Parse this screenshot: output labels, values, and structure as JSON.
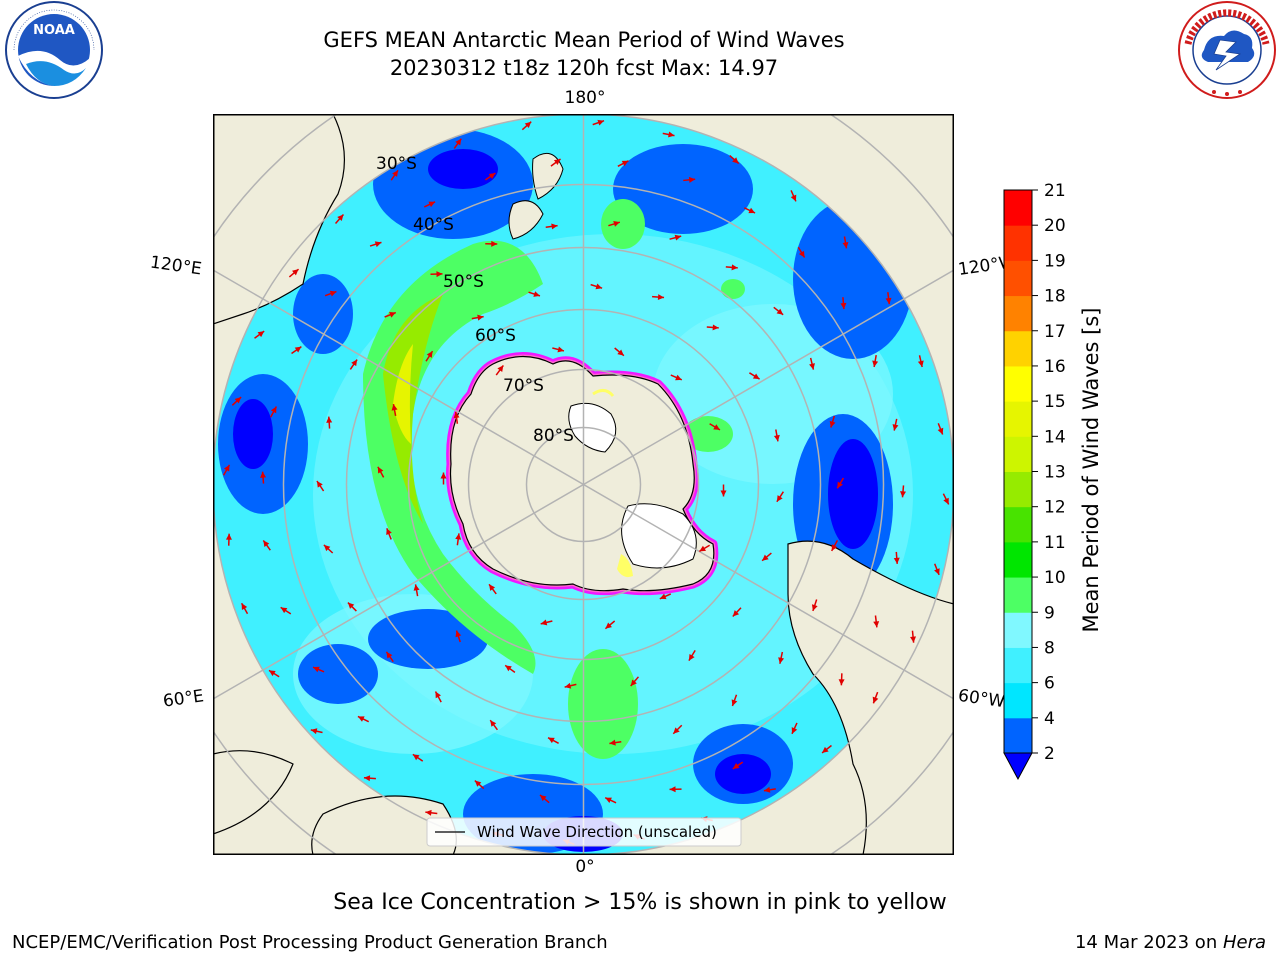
{
  "header": {
    "title_line1": "GEFS MEAN Antarctic Mean Period of Wind Waves",
    "title_line2": "20230312 t18z 120h fcst   Max: 14.97"
  },
  "logos": {
    "left": {
      "text": "NOAA",
      "ring_text": "NATIONAL OCEANIC AND ATMOSPHERIC ADMINISTRATION · U.S. DEPARTMENT OF COMMERCE"
    },
    "right": {
      "ring_text": "NATIONAL WEATHER SERVICE"
    }
  },
  "map": {
    "projection": "south-polar-stereographic",
    "longitude_labels": {
      "top": "180°",
      "bottom": "0°",
      "upper_left": "120°E",
      "upper_right": "120°W",
      "lower_left": "60°E",
      "lower_right": "60°W"
    },
    "latitude_labels": [
      "30°S",
      "40°S",
      "50°S",
      "60°S",
      "70°S",
      "80°S"
    ],
    "legend_label": "Wind Wave Direction (unscaled)",
    "land_color": "#efeddb",
    "grid_color": "#b3b3b3",
    "arrow_color": "#e00000",
    "sea_ice_colors": [
      "#ff66cc",
      "#ff00ff",
      "#ffff66"
    ]
  },
  "colorbar": {
    "label": "Mean Period of Wind Waves [s]",
    "ticks": [
      "2",
      "4",
      "6",
      "8",
      "9",
      "10",
      "11",
      "12",
      "13",
      "14",
      "15",
      "16",
      "17",
      "18",
      "19",
      "20",
      "21"
    ],
    "colors": [
      "#0064ff",
      "#00e6ff",
      "#40f0ff",
      "#80f8ff",
      "#a6fdf0",
      "#4dff64",
      "#00e600",
      "#48e300",
      "#96eb00",
      "#cdf500",
      "#e6f500",
      "#ffff00",
      "#ffd200",
      "#ffb400",
      "#ff8200",
      "#ff5000",
      "#ff3200",
      "#ff0000"
    ],
    "extend_color": "#0000ff"
  },
  "footer": {
    "note": "Sea Ice Concentration > 15% is shown in pink to yellow",
    "left": "NCEP/EMC/Verification Post Processing Product Generation Branch",
    "right_date": "14 Mar 2023 on ",
    "right_machine": "Hera"
  }
}
